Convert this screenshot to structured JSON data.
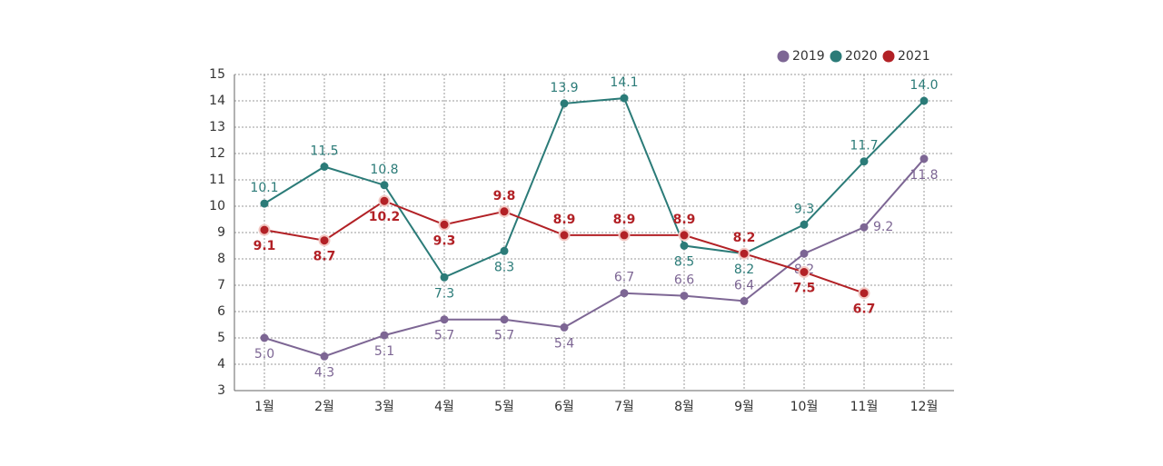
{
  "chart_data": {
    "type": "line",
    "categories": [
      "1월",
      "2월",
      "3월",
      "4월",
      "5월",
      "6월",
      "7월",
      "8월",
      "9월",
      "10월",
      "11월",
      "12월"
    ],
    "series": [
      {
        "name": "2019",
        "color": "#7d6694",
        "values": [
          5.0,
          4.3,
          5.1,
          5.7,
          5.7,
          5.4,
          6.7,
          6.6,
          6.4,
          8.2,
          9.2,
          11.8
        ],
        "value_labels": [
          "5.0",
          "4.3",
          "5.1",
          "5.7",
          "5.7",
          "5.4",
          "6.7",
          "6.6",
          "6.4",
          "8.2",
          "9.2",
          "11.8"
        ]
      },
      {
        "name": "2020",
        "color": "#2b7b78",
        "values": [
          10.1,
          11.5,
          10.8,
          7.3,
          8.3,
          13.9,
          14.1,
          8.5,
          8.2,
          9.3,
          11.7,
          14.0
        ],
        "value_labels": [
          "10.1",
          "11.5",
          "10.8",
          "7.3",
          "8.3",
          "13.9",
          "14.1",
          "8.5",
          "8.2",
          "9.3",
          "11.7",
          "14.0"
        ]
      },
      {
        "name": "2021",
        "color": "#b22126",
        "values": [
          9.1,
          8.7,
          10.2,
          9.3,
          9.8,
          8.9,
          8.9,
          8.9,
          8.2,
          7.5,
          6.7,
          null
        ],
        "value_labels": [
          "9.1",
          "8.7",
          "10.2",
          "9.3",
          "9.8",
          "8.9",
          "8.9",
          "8.9",
          "8.2",
          "7.5",
          "6.7",
          null
        ]
      }
    ],
    "ylim": [
      3,
      15
    ],
    "yticks": [
      3,
      4,
      5,
      6,
      7,
      8,
      9,
      10,
      11,
      12,
      13,
      14,
      15
    ],
    "grid": true,
    "legend": "top-right"
  }
}
